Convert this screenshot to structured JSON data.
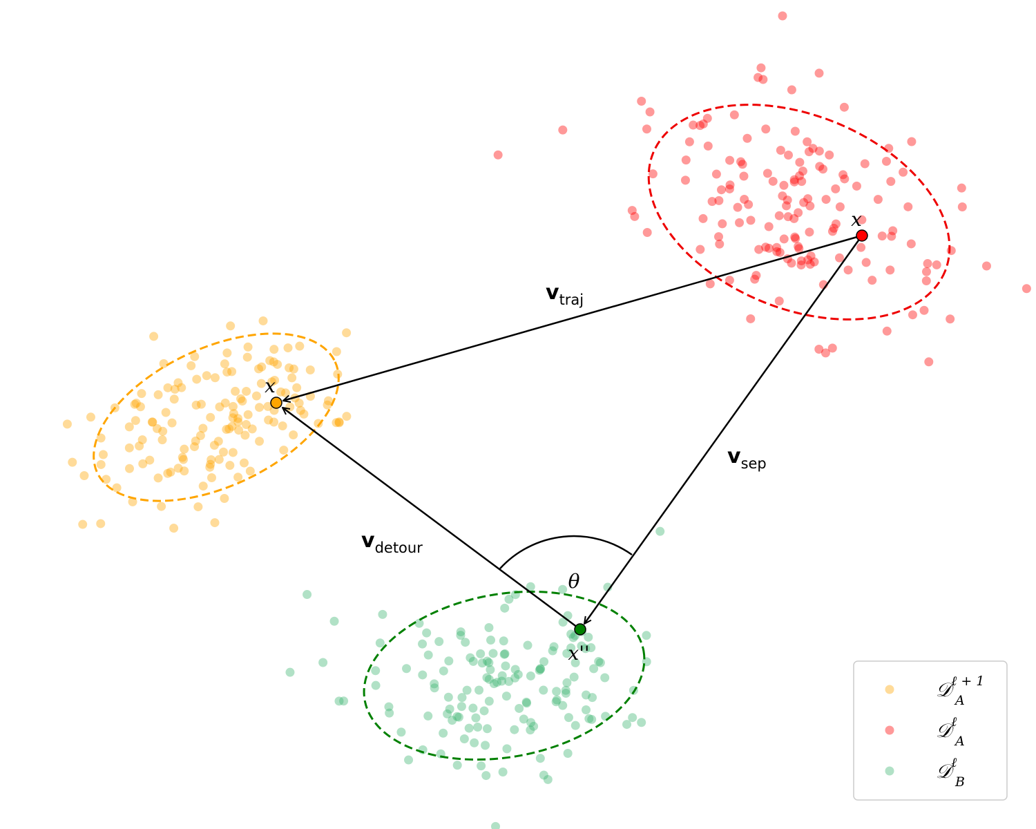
{
  "points": [
    {
      "label": "x"
    },
    {
      "label": "x"
    },
    {
      "label": "x''"
    }
  ],
  "vectors": [
    {
      "base": "v",
      "sub": "traj"
    },
    {
      "base": "v",
      "sub": "sep"
    },
    {
      "base": "v",
      "sub": "detour"
    }
  ],
  "angle": "θ",
  "legend": [
    {
      "base": "𝒟",
      "sub": "A",
      "sup": "ℓ + 1"
    },
    {
      "base": "𝒟",
      "sub": "A",
      "sup": "ℓ"
    },
    {
      "base": "𝒟",
      "sub": "B",
      "sup": "ℓ"
    }
  ]
}
